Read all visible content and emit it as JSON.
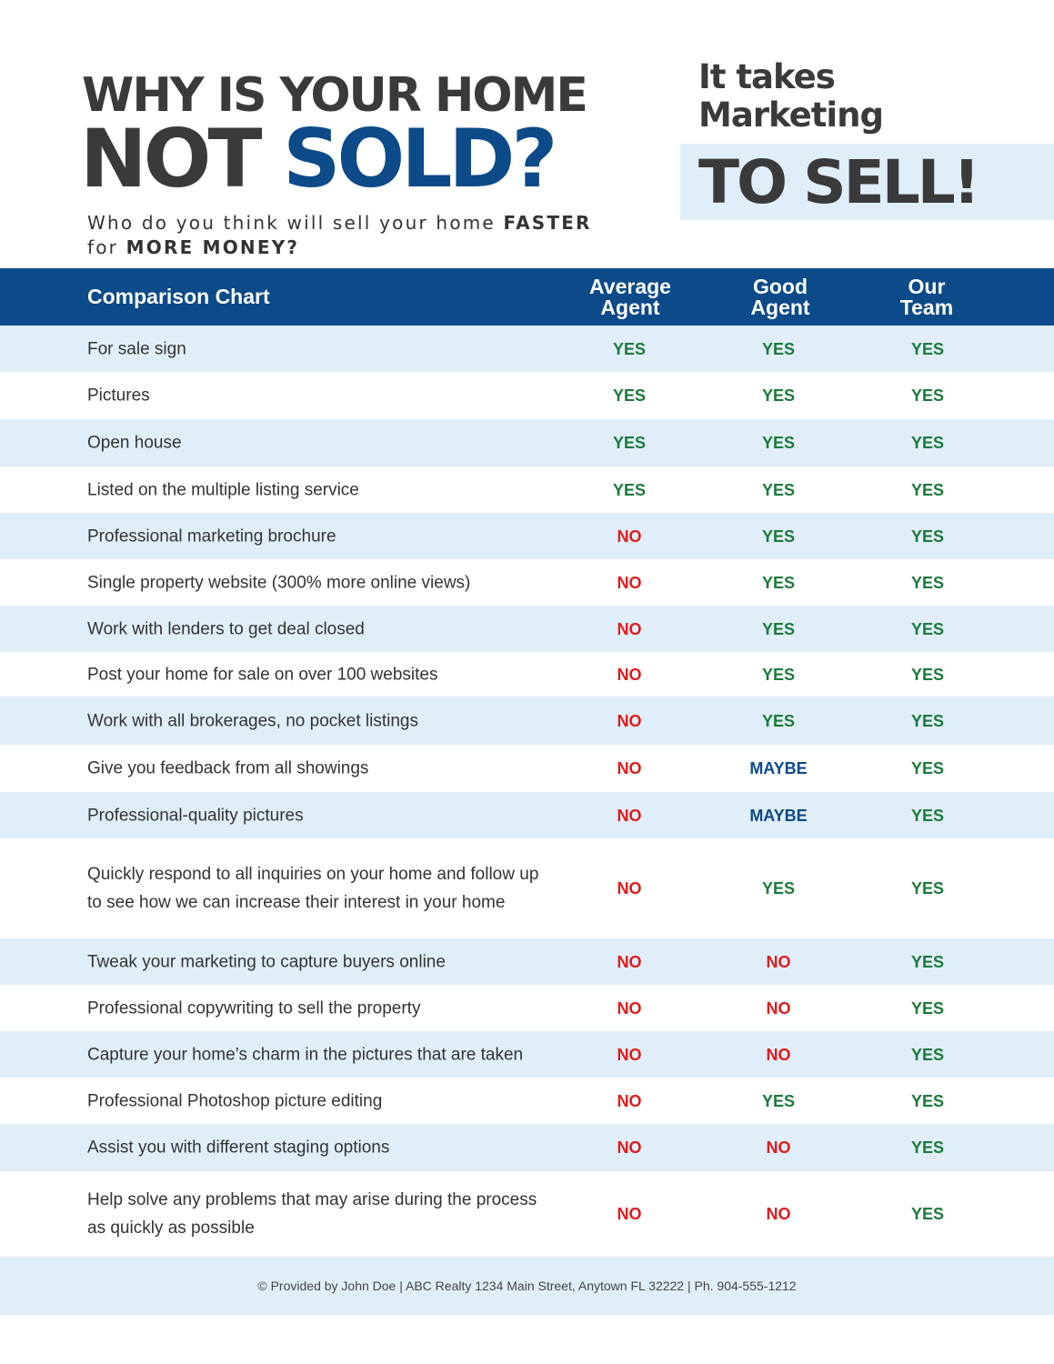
{
  "header": {
    "line1": "WHY IS YOUR HOME",
    "line2_part1": "NOT",
    "line2_part2": "SOLD?",
    "tagline_1": "Who do you think will sell your home",
    "tagline_bold_1": "FASTER",
    "tagline_2": "for",
    "tagline_bold_2": "MORE MONEY?"
  },
  "side": {
    "intro_line1": "It takes",
    "intro_line2": "Marketing",
    "emphasis": "TO SELL!"
  },
  "table": {
    "title": "Comparison Chart",
    "columns": [
      {
        "line1": "Average",
        "line2": "Agent"
      },
      {
        "line1": "Good",
        "line2": "Agent"
      },
      {
        "line1": "Our",
        "line2": "Team"
      }
    ],
    "rows": [
      {
        "feature": "For sale sign",
        "values": [
          "YES",
          "YES",
          "YES"
        ]
      },
      {
        "feature": "Pictures",
        "values": [
          "YES",
          "YES",
          "YES"
        ]
      },
      {
        "feature": "Open house",
        "values": [
          "YES",
          "YES",
          "YES"
        ]
      },
      {
        "feature": "Listed on the multiple listing service",
        "values": [
          "YES",
          "YES",
          "YES"
        ]
      },
      {
        "feature": "Professional marketing brochure",
        "values": [
          "NO",
          "YES",
          "YES"
        ]
      },
      {
        "feature": "Single property website (300% more online views)",
        "values": [
          "NO",
          "YES",
          "YES"
        ]
      },
      {
        "feature": "Work with lenders to get deal closed",
        "values": [
          "NO",
          "YES",
          "YES"
        ]
      },
      {
        "feature": "Post your home for sale on over 100 websites",
        "values": [
          "NO",
          "YES",
          "YES"
        ]
      },
      {
        "feature": "Work with all brokerages, no pocket listings",
        "values": [
          "NO",
          "YES",
          "YES"
        ]
      },
      {
        "feature": "Give you feedback from all showings",
        "values": [
          "NO",
          "MAYBE",
          "YES"
        ]
      },
      {
        "feature": "Professional-quality pictures",
        "values": [
          "NO",
          "MAYBE",
          "YES"
        ]
      },
      {
        "feature": "Quickly respond to all inquiries on your home and follow up to see how we can increase their interest in your home",
        "values": [
          "NO",
          "YES",
          "YES"
        ]
      },
      {
        "feature": "Tweak your marketing to capture buyers online",
        "values": [
          "NO",
          "NO",
          "YES"
        ]
      },
      {
        "feature": "Professional copywriting to sell the property",
        "values": [
          "NO",
          "NO",
          "YES"
        ]
      },
      {
        "feature": "Capture your home’s charm in the pictures that are taken",
        "values": [
          "NO",
          "NO",
          "YES"
        ]
      },
      {
        "feature": "Professional Photoshop picture editing",
        "values": [
          "NO",
          "YES",
          "YES"
        ]
      },
      {
        "feature": "Assist you with different staging options",
        "values": [
          "NO",
          "NO",
          "YES"
        ]
      },
      {
        "feature": "Help solve any problems that may arise during the process as quickly as possible",
        "values": [
          "NO",
          "NO",
          "YES"
        ]
      }
    ]
  },
  "footer": {
    "text": "© Provided by John Doe | ABC Realty 1234 Main Street, Anytown FL 32222 | Ph. 904-555-1212"
  },
  "colors": {
    "brand_blue": "#0c4a89",
    "light_blue": "#e0eef9",
    "yes": "#1b7a3a",
    "no": "#e11b1b",
    "maybe": "#0c4a89",
    "headline": "#3a3a3a"
  }
}
